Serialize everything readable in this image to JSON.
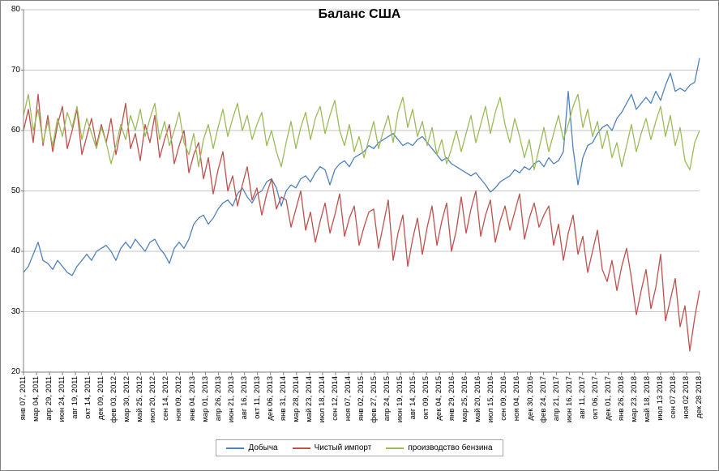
{
  "title": "Баланс США",
  "colors": {
    "background": "#FFFFFF",
    "grid": "#C6C6C6",
    "axis": "#808080",
    "text": "#000000",
    "series_blue": "#4F81BD",
    "series_red": "#C0504D",
    "series_green": "#9BBB59"
  },
  "chart_data": {
    "type": "line",
    "title": "Баланс США",
    "xlabel": "",
    "ylabel": "",
    "ylim": [
      20,
      80
    ],
    "yticks": [
      20,
      30,
      40,
      50,
      60,
      70,
      80
    ],
    "grid": "horizontal",
    "legend_position": "bottom-center",
    "x_type": "weekly dates, labels every 8 weeks",
    "x_tick_labels": [
      "янв 07, 2011",
      "мар 04, 2011",
      "апр 29, 2011",
      "июн 24, 2011",
      "авг 19, 2011",
      "окт 14, 2011",
      "дек 09, 2011",
      "фев 03, 2012",
      "мар 30, 2012",
      "май 25, 2012",
      "июл 20, 2012",
      "сен 14, 2012",
      "ноя 09, 2012",
      "янв 04, 2013",
      "мар 01, 2013",
      "апр 26, 2013",
      "июн 21, 2013",
      "авг 16, 2013",
      "окт 11, 2013",
      "дек 06, 2013",
      "янв 31, 2014",
      "мар 28, 2014",
      "май 23, 2014",
      "июл 18, 2014",
      "сен 12, 2014",
      "ноя 07, 2014",
      "янв 02, 2015",
      "фев 27, 2015",
      "апр 24, 2015",
      "июн 19, 2015",
      "авг 14, 2015",
      "окт 09, 2015",
      "дек 04, 2015",
      "янв 29, 2016",
      "мар 25, 2016",
      "май 20, 2016",
      "июл 15, 2016",
      "сен 09, 2016",
      "ноя 04, 2016",
      "дек 30, 2016",
      "фев 24, 2017",
      "апр 21, 2017",
      "июн 16, 2017",
      "авг 11, 2017",
      "окт 06, 2017",
      "дек 01, 2017",
      "янв 26, 2018",
      "мар 23, 2018",
      "май 18, 2018",
      "июл 13 2018",
      "сен 07 2018",
      "ноя 02 2018",
      "дек 28 2018"
    ],
    "series": [
      {
        "name": "Добыча",
        "color": "#4F81BD",
        "values": [
          36.5,
          37.5,
          39.5,
          41.5,
          38.5,
          38,
          37,
          38.5,
          37.5,
          36.5,
          36,
          37.5,
          38.5,
          39.5,
          38.5,
          40,
          40.5,
          41,
          40,
          38.5,
          40.5,
          41.5,
          40.5,
          42,
          41,
          40,
          41.5,
          42,
          40.5,
          39.5,
          38,
          40.5,
          41.5,
          40.5,
          42,
          44.5,
          45.5,
          46,
          44.5,
          45.5,
          47,
          48,
          48.5,
          47.5,
          49.5,
          50.5,
          49,
          48,
          49.5,
          50,
          51.5,
          52,
          50.5,
          47.5,
          50,
          51,
          50.5,
          52,
          52.5,
          51.5,
          53,
          54,
          53.5,
          51,
          53.5,
          54.5,
          55,
          54,
          55.5,
          56,
          56.5,
          57.5,
          57,
          58,
          58.5,
          59,
          59.5,
          58.5,
          57.5,
          58,
          57.5,
          58.5,
          59,
          58,
          57,
          56,
          55,
          55.5,
          54.5,
          54,
          53.5,
          53,
          52.5,
          53,
          52,
          51,
          49.8,
          50.5,
          51.5,
          52,
          52.5,
          53.5,
          53,
          54,
          53.5,
          54.5,
          55,
          54,
          55.5,
          54.5,
          55,
          56.5,
          66.5,
          57,
          51,
          55.5,
          57.5,
          58,
          59.5,
          60.5,
          61,
          60,
          62,
          63,
          64.5,
          66,
          63.5,
          64.5,
          65.5,
          64.5,
          66.5,
          65,
          67.5,
          69.5,
          66.5,
          67,
          66.5,
          67.5,
          68,
          72
        ]
      },
      {
        "name": "Чистый импорт",
        "color": "#C0504D",
        "values": [
          60,
          63.5,
          58,
          66,
          57.5,
          62.5,
          56.5,
          61,
          64,
          57,
          60,
          63.5,
          56,
          59,
          62,
          57.5,
          61,
          58,
          62,
          56,
          60,
          64.5,
          57,
          59.5,
          55,
          61,
          58,
          62.5,
          55.5,
          58.5,
          61,
          54.5,
          57.5,
          60,
          53,
          56,
          58,
          52,
          55.5,
          49.5,
          53.5,
          56.5,
          50,
          52.5,
          47.5,
          51,
          54,
          48.5,
          50.5,
          46,
          49.5,
          52,
          47,
          49,
          48.5,
          44,
          47,
          50,
          43.5,
          46.5,
          41.5,
          45,
          48,
          43,
          46,
          49.5,
          42.5,
          45.5,
          47.5,
          41,
          44,
          46.5,
          47,
          40.5,
          44.5,
          48.5,
          38.5,
          43,
          46,
          37.5,
          42,
          45.5,
          39.5,
          44,
          47.5,
          41,
          45,
          48,
          40,
          43.5,
          49,
          43,
          47,
          50,
          42.5,
          46,
          48.5,
          41.5,
          45,
          47.5,
          43.5,
          46.5,
          49.5,
          42,
          45.5,
          48,
          44,
          46,
          47.5,
          41,
          44.5,
          38.5,
          43,
          46,
          39.5,
          42.5,
          36.5,
          40,
          43.5,
          37,
          35,
          38.5,
          33.5,
          37.5,
          40.5,
          35.5,
          29.5,
          33.5,
          37,
          30.5,
          34,
          39.5,
          28.5,
          32,
          35.5,
          27.5,
          31,
          23.5,
          29,
          33.5
        ]
      },
      {
        "name": "производство бензина",
        "color": "#9BBB59",
        "values": [
          62.5,
          66,
          60,
          63.5,
          58,
          61.5,
          57.5,
          62,
          59,
          63,
          60.5,
          64,
          58.5,
          62,
          59.5,
          57,
          60.5,
          58,
          54.5,
          57.5,
          61,
          58.5,
          62.5,
          60,
          63.5,
          59,
          62,
          64.5,
          58.5,
          61.5,
          57.5,
          60,
          63,
          58,
          56,
          59.5,
          54,
          58.5,
          61,
          57,
          60.5,
          63.5,
          59,
          62,
          64.5,
          60,
          62.5,
          58.5,
          61,
          63,
          57.5,
          60,
          56.5,
          54,
          58,
          61.5,
          57,
          60.5,
          63,
          58.5,
          62,
          64,
          59.5,
          62.5,
          65,
          60,
          57.5,
          61,
          56.5,
          59,
          55.5,
          58.5,
          61.5,
          57,
          60,
          62.5,
          58,
          63,
          65.5,
          60.5,
          63.5,
          59,
          61.5,
          57.5,
          60.5,
          56,
          58.5,
          54.5,
          57,
          60,
          56.5,
          59.5,
          62.5,
          58,
          61,
          64,
          59.5,
          63,
          65.5,
          61,
          58,
          62,
          59,
          55.5,
          58.5,
          53.5,
          57,
          60.5,
          56.5,
          59.5,
          62.5,
          58.5,
          61,
          64,
          66,
          60.5,
          63.5,
          59,
          61.5,
          57,
          60,
          55.5,
          58,
          54,
          57.5,
          61,
          56.5,
          59.5,
          62,
          58.5,
          61.5,
          64,
          59,
          62.5,
          57.5,
          60.5,
          55,
          53.5,
          58,
          60
        ]
      }
    ]
  }
}
